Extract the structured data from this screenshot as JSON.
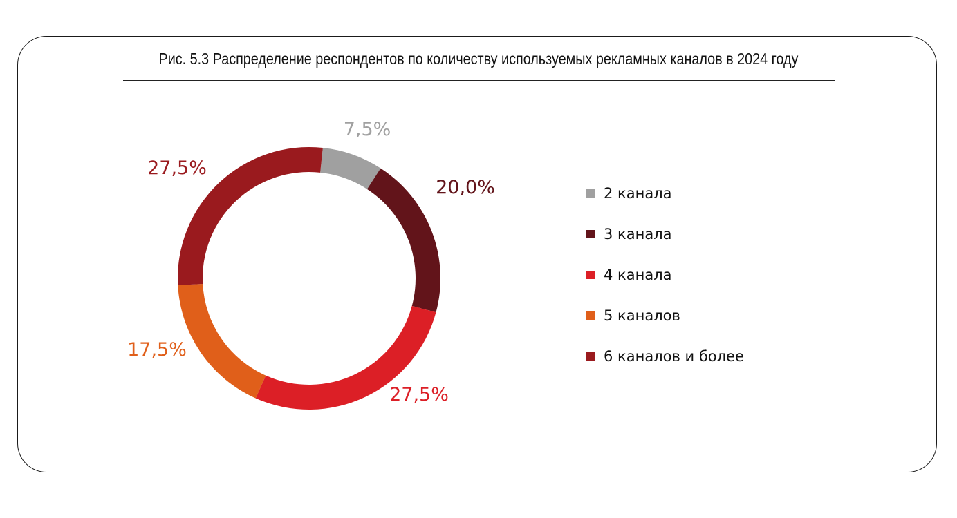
{
  "chart_data": {
    "type": "pie",
    "donut": true,
    "title": "Рис. 5.3 Распределение респондентов по количеству используемых рекламных каналов в 2024 году",
    "categories": [
      "2 канала",
      "3 канала",
      "4 канала",
      "5 каналов",
      "6 каналов и более"
    ],
    "values": [
      7.5,
      20.0,
      27.5,
      17.5,
      27.5
    ],
    "data_labels": [
      "7,5%",
      "20,0%",
      "27,5%",
      "17,5%",
      "27,5%"
    ],
    "colors": [
      "#a0a0a0",
      "#62141a",
      "#dc1f26",
      "#e05f1a",
      "#9a1a1e"
    ],
    "legend_position": "right"
  }
}
